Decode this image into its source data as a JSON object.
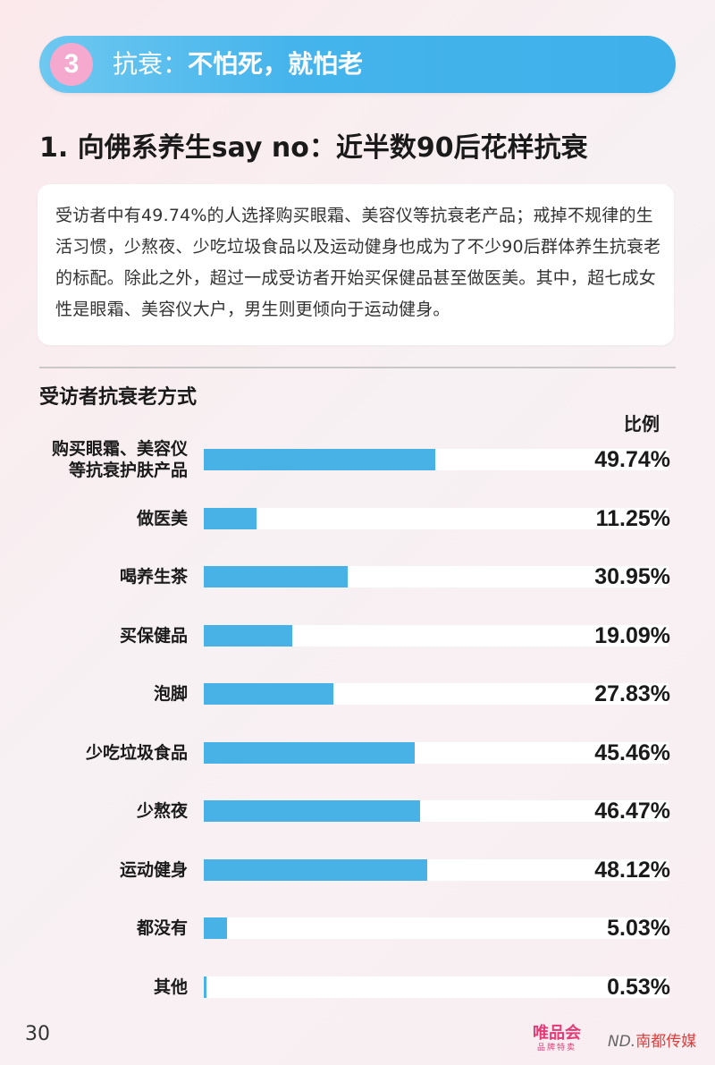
{
  "banner": {
    "number": "3",
    "title_prefix": "抗衰：",
    "title_bold": "不怕死，就怕老"
  },
  "section_heading": "1. 向佛系养生say no：近半数90后花样抗衰",
  "summary": "受访者中有49.74%的人选择购买眼霜、美容仪等抗衰老产品；戒掉不规律的生活习惯，少熬夜、少吃垃圾食品以及运动健身也成为了不少90后群体养生抗衰老的标配。除此之外，超过一成受访者开始买保健品甚至做医美。其中，超七成女性是眼霜、美容仪大户，男生则更倾向于运动健身。",
  "chart_data": {
    "type": "bar",
    "orientation": "horizontal",
    "title": "受访者抗衰老方式",
    "value_header": "比例",
    "unit": "%",
    "xlim": [
      0,
      100
    ],
    "bar_color": "#48b1e6",
    "track_color": "#ffffff",
    "categories": [
      "购买眼霜、美容仪\n等抗衰护肤产品",
      "做医美",
      "喝养生茶",
      "买保健品",
      "泡脚",
      "少吃垃圾食品",
      "少熬夜",
      "运动健身",
      "都没有",
      "其他"
    ],
    "values": [
      49.74,
      11.25,
      30.95,
      19.09,
      27.83,
      45.46,
      46.47,
      48.12,
      5.03,
      0.53
    ],
    "value_labels": [
      "49.74%",
      "11.25%",
      "30.95%",
      "19.09%",
      "27.83%",
      "45.46%",
      "46.47%",
      "48.12%",
      "5.03%",
      "0.53%"
    ]
  },
  "footer": {
    "page_number": "30",
    "logo_vip": "唯品会",
    "logo_vip_sub": "品牌特卖",
    "logo_nd_mark": "ND.",
    "logo_nd": "南都传媒"
  },
  "colors": {
    "banner": "#45b4ec",
    "badge": "#f6a9cf",
    "brand_red": "#e23c78"
  }
}
